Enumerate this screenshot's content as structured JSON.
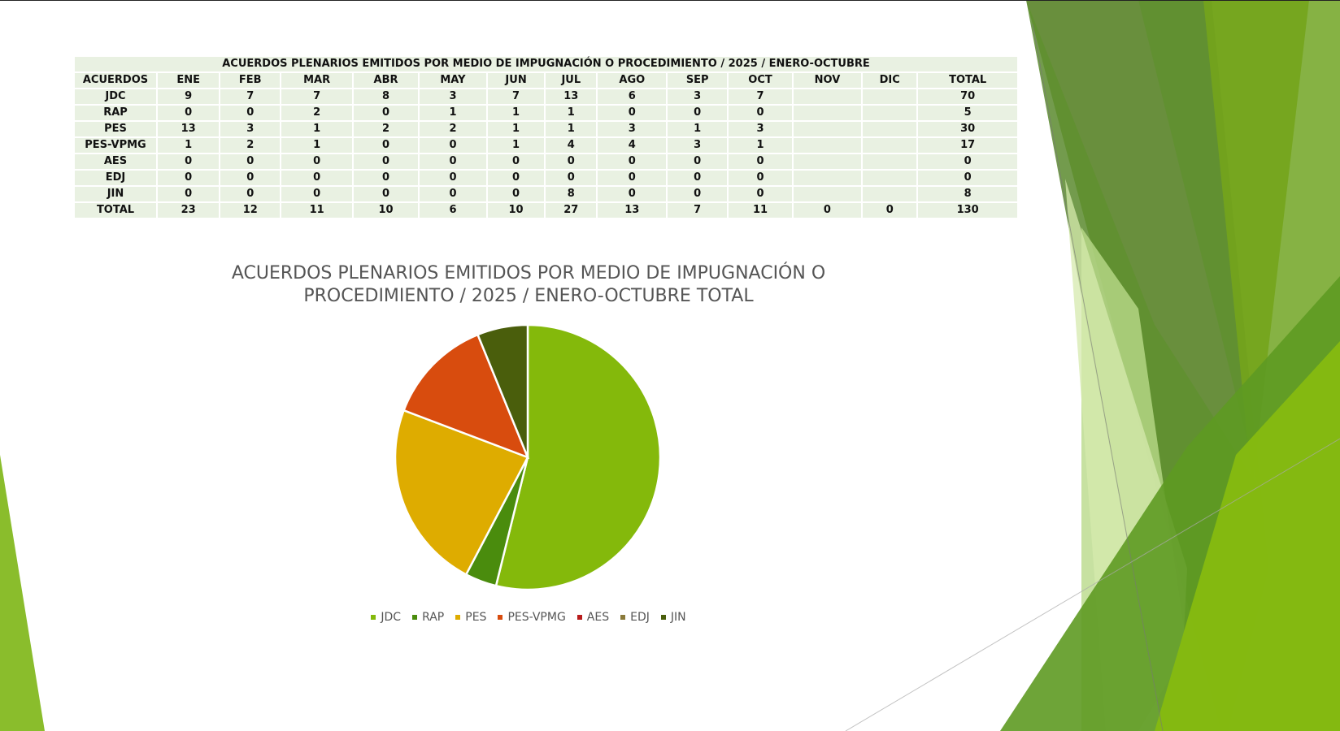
{
  "table": {
    "title": "ACUERDOS PLENARIOS EMITIDOS POR MEDIO DE IMPUGNACIÓN O PROCEDIMIENTO / 2025 /  ENERO-OCTUBRE",
    "headers": [
      "ACUERDOS",
      "ENE",
      "FEB",
      "MAR",
      "ABR",
      "MAY",
      "JUN",
      "JUL",
      "AGO",
      "SEP",
      "OCT",
      "NOV",
      "DIC",
      "TOTAL"
    ],
    "rows": [
      {
        "label": "JDC",
        "cells": [
          "9",
          "7",
          "7",
          "8",
          "3",
          "7",
          "13",
          "6",
          "3",
          "7",
          "",
          "",
          "70"
        ]
      },
      {
        "label": "RAP",
        "cells": [
          "0",
          "0",
          "2",
          "0",
          "1",
          "1",
          "1",
          "0",
          "0",
          "0",
          "",
          "",
          "5"
        ]
      },
      {
        "label": "PES",
        "cells": [
          "13",
          "3",
          "1",
          "2",
          "2",
          "1",
          "1",
          "3",
          "1",
          "3",
          "",
          "",
          "30"
        ]
      },
      {
        "label": "PES-VPMG",
        "cells": [
          "1",
          "2",
          "1",
          "0",
          "0",
          "1",
          "4",
          "4",
          "3",
          "1",
          "",
          "",
          "17"
        ]
      },
      {
        "label": "AES",
        "cells": [
          "0",
          "0",
          "0",
          "0",
          "0",
          "0",
          "0",
          "0",
          "0",
          "0",
          "",
          "",
          "0"
        ]
      },
      {
        "label": "EDJ",
        "cells": [
          "0",
          "0",
          "0",
          "0",
          "0",
          "0",
          "0",
          "0",
          "0",
          "0",
          "",
          "",
          "0"
        ]
      },
      {
        "label": "JIN",
        "cells": [
          "0",
          "0",
          "0",
          "0",
          "0",
          "0",
          "8",
          "0",
          "0",
          "0",
          "",
          "",
          "8"
        ]
      },
      {
        "label": "TOTAL",
        "cells": [
          "23",
          "12",
          "11",
          "10",
          "6",
          "10",
          "27",
          "13",
          "7",
          "11",
          "0",
          "0",
          "130"
        ]
      }
    ]
  },
  "chart_data": {
    "type": "pie",
    "title_line1": "ACUERDOS PLENARIOS EMITIDOS POR MEDIO DE IMPUGNACIÓN O",
    "title_line2": "PROCEDIMIENTO / 2025 /  ENERO-OCTUBRE TOTAL",
    "categories": [
      "JDC",
      "RAP",
      "PES",
      "PES-VPMG",
      "AES",
      "EDJ",
      "JIN"
    ],
    "values": [
      70,
      5,
      30,
      17,
      0,
      0,
      8
    ],
    "colors": [
      "#84b90b",
      "#4a8c0d",
      "#deac00",
      "#d84c0e",
      "#b81c1c",
      "#8a7a3a",
      "#4a5e0c"
    ],
    "legend_position": "bottom"
  }
}
